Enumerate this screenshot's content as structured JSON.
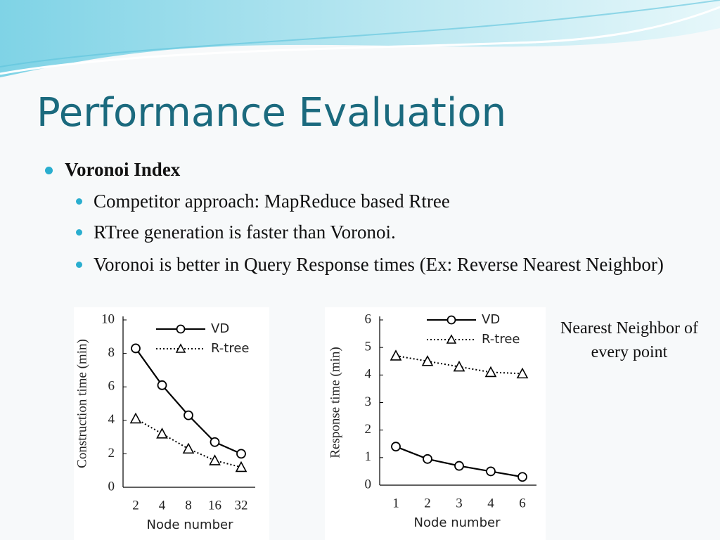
{
  "title": "Performance Evaluation",
  "bullets": [
    {
      "text": "Voronoi Index",
      "children": [
        "Competitor approach: MapReduce based Rtree",
        "RTree generation is faster than Voronoi.",
        "Voronoi is better in Query Response times (Ex: Reverse Nearest Neighbor)"
      ]
    }
  ],
  "note": "Nearest Neighbor of every point",
  "chart_data": [
    {
      "type": "line",
      "xlabel": "Node number",
      "ylabel": "Construction time (min)",
      "categories": [
        "2",
        "4",
        "8",
        "16",
        "32"
      ],
      "ylim": [
        0,
        10
      ],
      "yticks": [
        0,
        2,
        4,
        6,
        8,
        10
      ],
      "series": [
        {
          "name": "VD",
          "color": "#000000",
          "marker": "circle",
          "dash": "solid",
          "values": [
            8.3,
            6.1,
            4.3,
            2.7,
            2.0
          ]
        },
        {
          "name": "R-tree",
          "color": "#000000",
          "marker": "triangle",
          "dash": "dotted",
          "values": [
            4.1,
            3.2,
            2.3,
            1.6,
            1.2
          ]
        }
      ]
    },
    {
      "type": "line",
      "xlabel": "Node number",
      "ylabel": "Response time (min)",
      "categories": [
        "1",
        "2",
        "3",
        "4",
        "6"
      ],
      "ylim": [
        0,
        6
      ],
      "yticks": [
        0,
        1,
        2,
        3,
        4,
        5,
        6
      ],
      "series": [
        {
          "name": "VD",
          "color": "#000000",
          "marker": "circle",
          "dash": "solid",
          "values": [
            1.4,
            0.95,
            0.7,
            0.5,
            0.3
          ]
        },
        {
          "name": "R-tree",
          "color": "#000000",
          "marker": "triangle",
          "dash": "dotted",
          "values": [
            4.7,
            4.5,
            4.3,
            4.1,
            4.05
          ]
        }
      ]
    }
  ]
}
